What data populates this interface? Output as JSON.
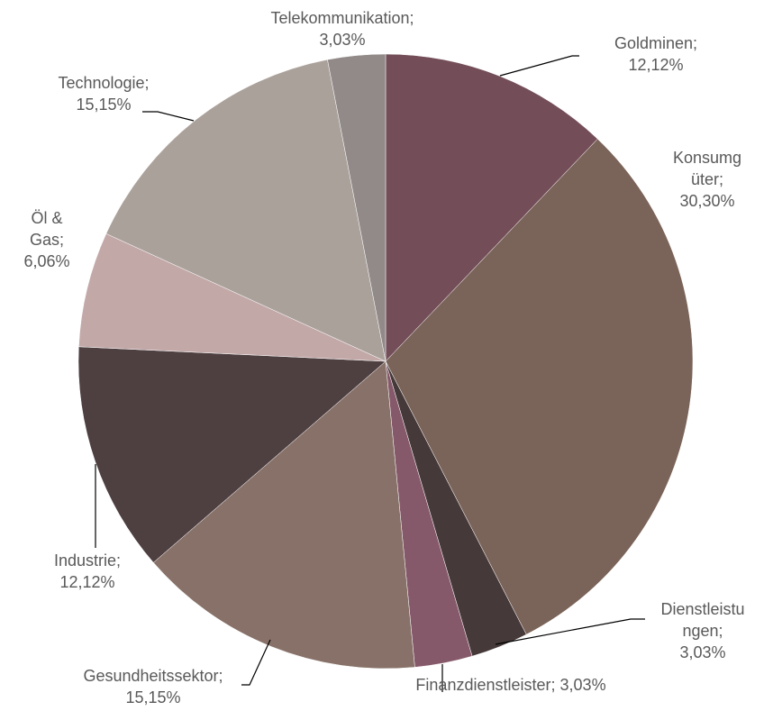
{
  "chart_data": {
    "type": "pie",
    "categories": [
      "Goldminen",
      "Konsumgüter",
      "Dienstleistungen",
      "Finanzdienstleister",
      "Gesundheitssektor",
      "Industrie",
      "Öl & Gas",
      "Technologie",
      "Telekommunikation"
    ],
    "values": [
      12.12,
      30.3,
      3.03,
      3.03,
      15.15,
      12.12,
      6.06,
      15.15,
      3.03
    ],
    "value_labels": [
      "12,12%",
      "30,30%",
      "3,03%",
      "3,03%",
      "15,15%",
      "12,12%",
      "6,06%",
      "15,15%",
      "3,03%"
    ],
    "label_separator": ";",
    "colors": [
      "#734e59",
      "#7a6358",
      "#463939",
      "#86596a",
      "#877168",
      "#4e3f41",
      "#c3a8a8",
      "#aba19b",
      "#918a88"
    ]
  }
}
